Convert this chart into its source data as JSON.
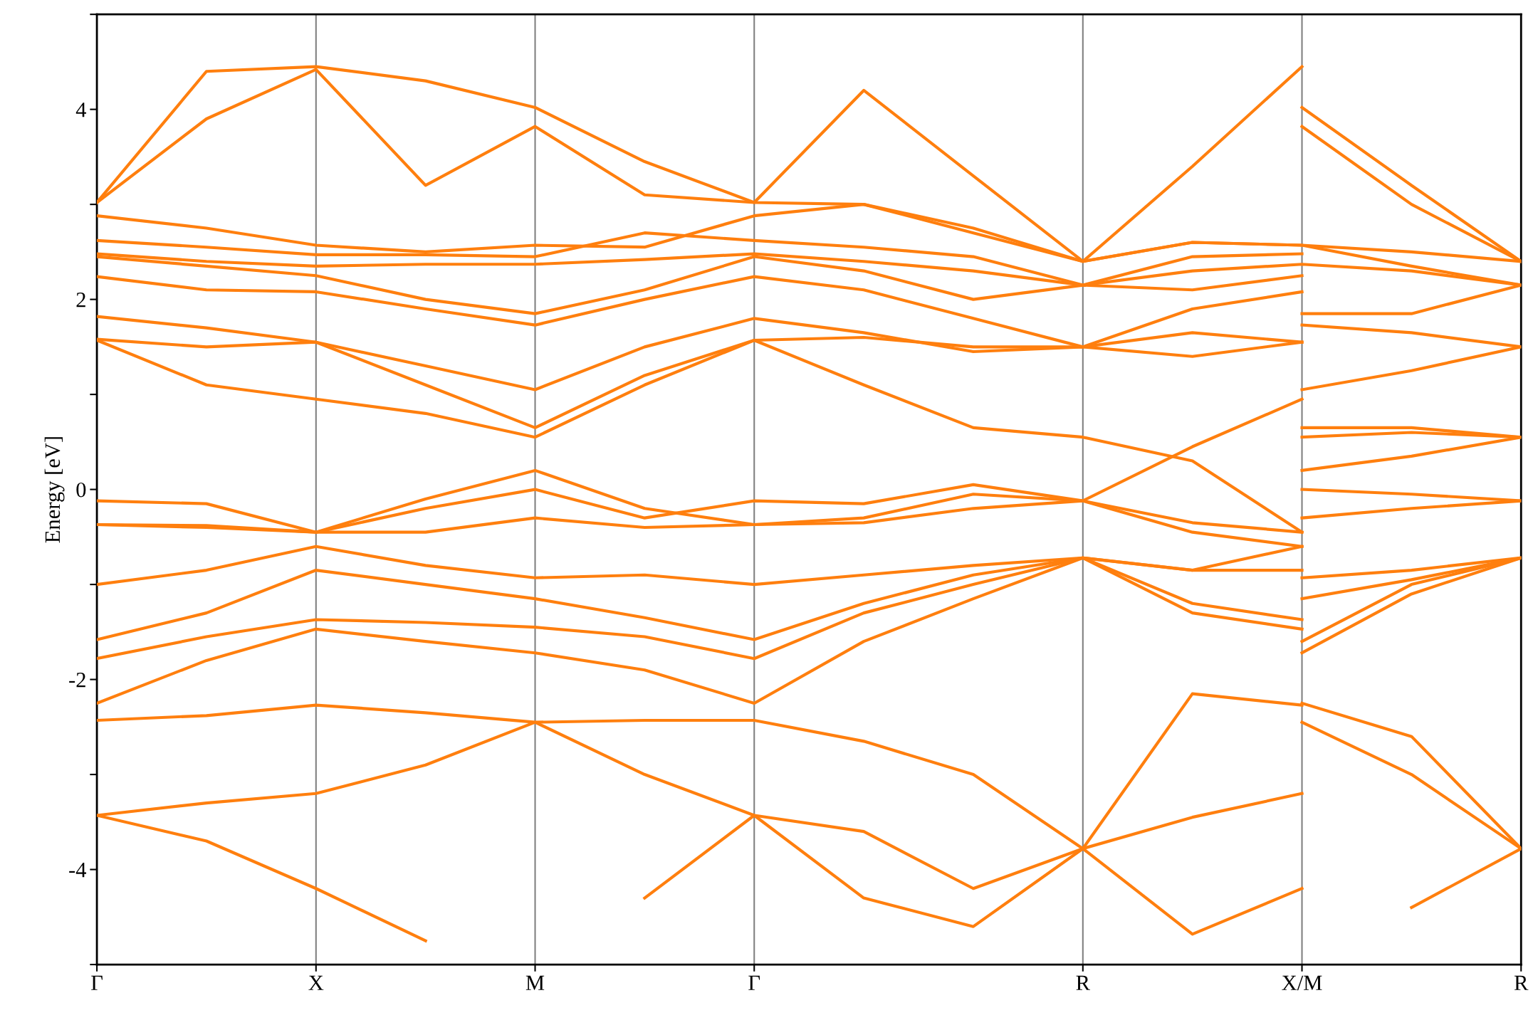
{
  "chart_data": {
    "type": "line",
    "ylabel": "Energy [eV]",
    "categories": [
      "Γ",
      null,
      "X",
      null,
      "M",
      null,
      "Γ",
      null,
      null,
      "R",
      null,
      "X/M",
      null,
      "R"
    ],
    "ylim": [
      -5,
      5
    ],
    "yticks": [
      {
        "value": -5,
        "label": null
      },
      -4,
      {
        "value": -3,
        "label": null
      },
      -2,
      {
        "value": -1,
        "label": null
      },
      0,
      {
        "value": 1,
        "label": null
      },
      2,
      {
        "value": 3,
        "label": null
      },
      4,
      {
        "value": 5,
        "label": null
      }
    ],
    "grid": "x",
    "marker": "none",
    "line_style": "solid",
    "series": [
      {
        "color": "#ff7f0e",
        "values": [
          -3.43,
          -3.7,
          -4.2,
          -4.75,
          null,
          -4.3,
          -3.43,
          -4.3,
          -4.6,
          -3.78,
          -4.68,
          -4.2,
          null,
          null
        ]
      },
      {
        "color": "#ff7f0e",
        "values": [
          -3.43,
          -3.3,
          -3.2,
          -2.9,
          -2.45,
          -3.0,
          -3.43,
          -3.6,
          -4.2,
          -3.78,
          -3.45,
          -3.2,
          null,
          null
        ]
      },
      {
        "color": "#ff7f0e",
        "values": [
          -2.43,
          -2.38,
          -2.27,
          -2.35,
          -2.45,
          -2.43,
          -2.43,
          -2.65,
          -3.0,
          -3.78,
          -2.15,
          -2.27,
          null,
          null
        ]
      },
      {
        "color": "#ff7f0e",
        "values": [
          -2.25,
          -1.8,
          -1.47,
          -1.6,
          -1.72,
          -1.9,
          -2.25,
          -1.6,
          -1.15,
          -0.72,
          -1.3,
          -1.47,
          null,
          null
        ]
      },
      {
        "color": "#ff7f0e",
        "values": [
          -1.78,
          -1.55,
          -1.37,
          -1.4,
          -1.45,
          -1.55,
          -1.78,
          -1.3,
          -1.0,
          -0.72,
          -1.2,
          -1.37,
          null,
          null
        ]
      },
      {
        "color": "#ff7f0e",
        "values": [
          -1.58,
          -1.3,
          -0.85,
          -1.0,
          -1.15,
          -1.35,
          -1.58,
          -1.2,
          -0.9,
          -0.72,
          -0.85,
          -0.85,
          null,
          null
        ]
      },
      {
        "color": "#ff7f0e",
        "values": [
          -1.0,
          -0.85,
          -0.6,
          -0.8,
          -0.93,
          -0.9,
          -1.0,
          -0.9,
          -0.8,
          -0.72,
          -0.85,
          -0.6,
          null,
          null
        ]
      },
      {
        "color": "#ff7f0e",
        "values": [
          -0.37,
          -0.4,
          -0.45,
          -0.45,
          -0.3,
          -0.4,
          -0.37,
          -0.3,
          -0.05,
          -0.12,
          -0.35,
          -0.45,
          null,
          null
        ]
      },
      {
        "color": "#ff7f0e",
        "values": [
          -0.12,
          -0.15,
          -0.45,
          -0.2,
          0.0,
          -0.3,
          -0.12,
          -0.15,
          0.05,
          -0.12,
          -0.45,
          -0.6,
          null,
          null
        ]
      },
      {
        "color": "#ff7f0e",
        "values": [
          -0.37,
          -0.38,
          -0.45,
          -0.1,
          0.2,
          -0.2,
          -0.37,
          -0.35,
          -0.2,
          -0.12,
          0.45,
          0.95,
          null,
          null
        ]
      },
      {
        "color": "#ff7f0e",
        "values": [
          1.57,
          1.1,
          0.95,
          0.8,
          0.55,
          1.1,
          1.57,
          1.1,
          0.65,
          0.55,
          0.3,
          -0.45,
          null,
          null
        ]
      },
      {
        "color": "#ff7f0e",
        "values": [
          1.58,
          1.5,
          1.55,
          1.1,
          0.65,
          1.2,
          1.57,
          1.6,
          1.5,
          1.5,
          1.65,
          1.55,
          null,
          null
        ]
      },
      {
        "color": "#ff7f0e",
        "values": [
          1.82,
          1.7,
          1.55,
          1.3,
          1.05,
          1.5,
          1.8,
          1.65,
          1.45,
          1.5,
          1.4,
          1.55,
          null,
          null
        ]
      },
      {
        "color": "#ff7f0e",
        "values": [
          2.24,
          2.1,
          2.08,
          1.9,
          1.73,
          2.0,
          2.24,
          2.1,
          1.8,
          1.5,
          1.9,
          2.08,
          null,
          null
        ]
      },
      {
        "color": "#ff7f0e",
        "values": [
          2.45,
          2.35,
          2.25,
          2.0,
          1.85,
          2.1,
          2.45,
          2.3,
          2.0,
          2.15,
          2.1,
          2.25,
          null,
          null
        ]
      },
      {
        "color": "#ff7f0e",
        "values": [
          2.48,
          2.4,
          2.35,
          2.37,
          2.37,
          2.42,
          2.48,
          2.4,
          2.3,
          2.15,
          2.3,
          2.37,
          2.3,
          2.15
        ]
      },
      {
        "color": "#ff7f0e",
        "values": [
          2.62,
          2.55,
          2.47,
          2.47,
          2.45,
          2.7,
          2.62,
          2.55,
          2.45,
          2.15,
          2.45,
          2.48,
          null,
          null
        ]
      },
      {
        "color": "#ff7f0e",
        "values": [
          2.88,
          2.75,
          2.57,
          2.5,
          2.57,
          2.55,
          2.88,
          3.0,
          2.7,
          2.4,
          2.6,
          2.57,
          2.5,
          2.4
        ]
      },
      {
        "color": "#ff7f0e",
        "values": [
          3.02,
          3.9,
          4.42,
          3.2,
          3.82,
          3.1,
          3.02,
          4.2,
          3.3,
          2.4,
          3.4,
          4.45,
          null,
          null
        ]
      },
      {
        "color": "#ff7f0e",
        "values": [
          3.02,
          4.4,
          4.45,
          4.3,
          4.02,
          3.45,
          3.02,
          3.0,
          2.75,
          2.4,
          2.6,
          2.57,
          2.35,
          2.15
        ]
      },
      {
        "color": "#ff7f0e",
        "values": [
          null,
          null,
          null,
          null,
          null,
          null,
          null,
          null,
          null,
          null,
          null,
          null,
          -4.4,
          -3.78
        ]
      },
      {
        "color": "#ff7f0e",
        "values": [
          null,
          null,
          null,
          null,
          null,
          null,
          null,
          null,
          null,
          null,
          null,
          -2.45,
          -3.0,
          -3.78
        ]
      },
      {
        "color": "#ff7f0e",
        "values": [
          null,
          null,
          null,
          null,
          null,
          null,
          null,
          null,
          null,
          null,
          null,
          -2.25,
          -2.6,
          -3.78
        ]
      },
      {
        "color": "#ff7f0e",
        "values": [
          null,
          null,
          null,
          null,
          null,
          null,
          null,
          null,
          null,
          null,
          null,
          -1.72,
          -1.1,
          -0.72
        ]
      },
      {
        "color": "#ff7f0e",
        "values": [
          null,
          null,
          null,
          null,
          null,
          null,
          null,
          null,
          null,
          null,
          null,
          -1.6,
          -1.0,
          -0.72
        ]
      },
      {
        "color": "#ff7f0e",
        "values": [
          null,
          null,
          null,
          null,
          null,
          null,
          null,
          null,
          null,
          null,
          null,
          -1.15,
          -0.95,
          -0.72
        ]
      },
      {
        "color": "#ff7f0e",
        "values": [
          null,
          null,
          null,
          null,
          null,
          null,
          null,
          null,
          null,
          null,
          null,
          -0.93,
          -0.85,
          -0.72
        ]
      },
      {
        "color": "#ff7f0e",
        "values": [
          null,
          null,
          null,
          null,
          null,
          null,
          null,
          null,
          null,
          null,
          null,
          -0.3,
          -0.2,
          -0.12
        ]
      },
      {
        "color": "#ff7f0e",
        "values": [
          null,
          null,
          null,
          null,
          null,
          null,
          null,
          null,
          null,
          null,
          null,
          0.0,
          -0.05,
          -0.12
        ]
      },
      {
        "color": "#ff7f0e",
        "values": [
          null,
          null,
          null,
          null,
          null,
          null,
          null,
          null,
          null,
          null,
          null,
          0.2,
          0.35,
          0.55
        ]
      },
      {
        "color": "#ff7f0e",
        "values": [
          null,
          null,
          null,
          null,
          null,
          null,
          null,
          null,
          null,
          null,
          null,
          0.55,
          0.6,
          0.55
        ]
      },
      {
        "color": "#ff7f0e",
        "values": [
          null,
          null,
          null,
          null,
          null,
          null,
          null,
          null,
          null,
          null,
          null,
          0.65,
          0.65,
          0.55
        ]
      },
      {
        "color": "#ff7f0e",
        "values": [
          null,
          null,
          null,
          null,
          null,
          null,
          null,
          null,
          null,
          null,
          null,
          1.05,
          1.25,
          1.5
        ]
      },
      {
        "color": "#ff7f0e",
        "values": [
          null,
          null,
          null,
          null,
          null,
          null,
          null,
          null,
          null,
          null,
          null,
          1.73,
          1.65,
          1.5
        ]
      },
      {
        "color": "#ff7f0e",
        "values": [
          null,
          null,
          null,
          null,
          null,
          null,
          null,
          null,
          null,
          null,
          null,
          1.85,
          1.85,
          2.15
        ]
      },
      {
        "color": "#ff7f0e",
        "values": [
          null,
          null,
          null,
          null,
          null,
          null,
          null,
          null,
          null,
          null,
          null,
          3.82,
          3.0,
          2.4
        ]
      },
      {
        "color": "#ff7f0e",
        "values": [
          null,
          null,
          null,
          null,
          null,
          null,
          null,
          null,
          null,
          null,
          null,
          4.02,
          3.2,
          2.4
        ]
      }
    ]
  }
}
